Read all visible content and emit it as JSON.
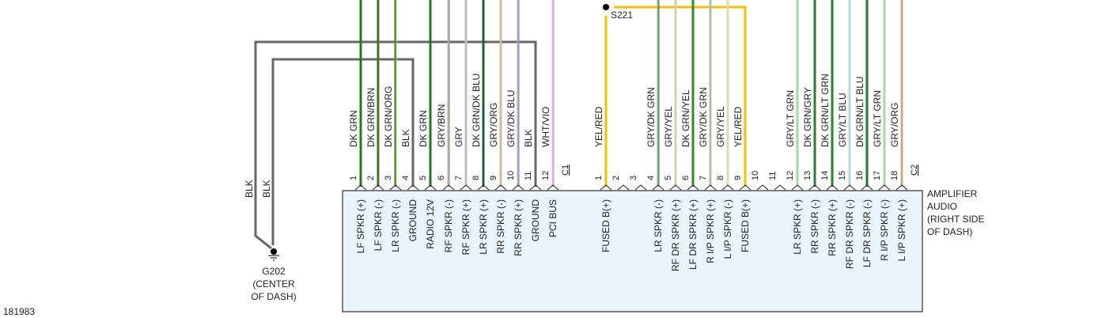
{
  "diagram_id": "181983",
  "colors": {
    "module_fill": "#e9f4fc",
    "module_border": "#555555",
    "ground_wire": "#666666",
    "splice_wire": "#f2c200"
  },
  "module": {
    "name_lines": [
      "AMPLIFIER",
      "AUDIO",
      "(RIGHT SIDE",
      "OF DASH)"
    ]
  },
  "ground": {
    "id": "G202",
    "location_lines": [
      "(CENTER",
      "OF DASH)"
    ],
    "wires": [
      {
        "color_label": "BLK",
        "from_connector": "C1",
        "from_pin": 11
      },
      {
        "color_label": "BLK",
        "from_connector": "C1",
        "from_pin": 4
      }
    ]
  },
  "splice": {
    "id": "S221",
    "pins": [
      {
        "connector": "C2",
        "pin": 1
      },
      {
        "connector": "C2",
        "pin": 9
      }
    ]
  },
  "connectors": [
    {
      "id": "C1",
      "pins": [
        {
          "pin": "1",
          "wire": "DK GRN",
          "function": "LF SPKR (+)",
          "color": "#1f7a1f",
          "stripe": "#1f7a1f"
        },
        {
          "pin": "2",
          "wire": "DK GRN/BRN",
          "function": "LF SPKR (-)",
          "color": "#1f7a1f",
          "stripe": "#8a6a3a"
        },
        {
          "pin": "3",
          "wire": "DK GRN/ORG",
          "function": "LR SPKR (-)",
          "color": "#2f8a2f",
          "stripe": "#d9b96a"
        },
        {
          "pin": "4",
          "wire": "BLK",
          "function": "GROUND",
          "color": "#666666",
          "stripe": "#666666"
        },
        {
          "pin": "5",
          "wire": "DK GRN",
          "function": "RADIO 12V",
          "color": "#1f7a1f",
          "stripe": "#1f7a1f"
        },
        {
          "pin": "6",
          "wire": "GRY/BRN",
          "function": "RF SPKR (-)",
          "color": "#b8b0a0",
          "stripe": "#9a8a70"
        },
        {
          "pin": "7",
          "wire": "GRY",
          "function": "RF SPKR (+)",
          "color": "#bdbdbd",
          "stripe": "#bdbdbd"
        },
        {
          "pin": "8",
          "wire": "DK GRN/DK BLU",
          "function": "LR SPKR (+)",
          "color": "#1f5f3a",
          "stripe": "#1f5f3a"
        },
        {
          "pin": "9",
          "wire": "GRY/ORG",
          "function": "RR SPKR (-)",
          "color": "#d4b89a",
          "stripe": "#d4b89a"
        },
        {
          "pin": "10",
          "wire": "GRY/DK BLU",
          "function": "RR SPKR (+)",
          "color": "#a8b0c8",
          "stripe": "#7f8aa8"
        },
        {
          "pin": "11",
          "wire": "BLK",
          "function": "GROUND",
          "color": "#666666",
          "stripe": "#666666"
        },
        {
          "pin": "12",
          "wire": "WHT/VIO",
          "function": "PCI BUS",
          "color": "#e6b0e6",
          "stripe": "#d89ad8"
        }
      ]
    },
    {
      "id": "C2",
      "pins": [
        {
          "pin": "1",
          "wire": "YEL/RED",
          "function": "FUSED B(+)",
          "color": "#f2c94c",
          "stripe": "#e0a020"
        },
        {
          "pin": "2",
          "wire": "",
          "function": "",
          "color": "",
          "stripe": ""
        },
        {
          "pin": "3",
          "wire": "",
          "function": "",
          "color": "",
          "stripe": ""
        },
        {
          "pin": "4",
          "wire": "GRY/DK GRN",
          "function": "LR SPKR (-)",
          "color": "#8fb08f",
          "stripe": "#4a7a4a"
        },
        {
          "pin": "5",
          "wire": "GRY/YEL",
          "function": "RF DR SPKR (+)",
          "color": "#cfd0b0",
          "stripe": "#cfd0b0"
        },
        {
          "pin": "6",
          "wire": "DK GRN/YEL",
          "function": "LF DR SPKR (+)",
          "color": "#2f8a2f",
          "stripe": "#2f8a2f"
        },
        {
          "pin": "7",
          "wire": "GRY/DK GRN",
          "function": "R I/P SPKR (+)",
          "color": "#a8c0a8",
          "stripe": "#a8c0a8"
        },
        {
          "pin": "8",
          "wire": "GRY/YEL",
          "function": "L I/P SPKR (-)",
          "color": "#d8dcb8",
          "stripe": "#d8dcb8"
        },
        {
          "pin": "9",
          "wire": "YEL/RED",
          "function": "FUSED B(+)",
          "color": "#f2c94c",
          "stripe": "#e0a020"
        },
        {
          "pin": "10",
          "wire": "",
          "function": "",
          "color": "",
          "stripe": ""
        },
        {
          "pin": "11",
          "wire": "",
          "function": "",
          "color": "",
          "stripe": ""
        },
        {
          "pin": "12",
          "wire": "GRY/LT GRN",
          "function": "LR SPKR (+)",
          "color": "#a8d8a8",
          "stripe": "#a8d8a8"
        },
        {
          "pin": "13",
          "wire": "DK GRN/GRY",
          "function": "RR SPKR (-)",
          "color": "#2f7a3a",
          "stripe": "#2f7a3a"
        },
        {
          "pin": "14",
          "wire": "DK GRN/LT GRN",
          "function": "RR SPKR (+)",
          "color": "#1f8a2f",
          "stripe": "#1f8a2f"
        },
        {
          "pin": "15",
          "wire": "GRY/LT BLU",
          "function": "RF DR SPKR (-)",
          "color": "#b0d8e0",
          "stripe": "#b0d8e0"
        },
        {
          "pin": "16",
          "wire": "DK GRN/LT BLU",
          "function": "LF DR SPKR (-)",
          "color": "#1f7a3a",
          "stripe": "#1f7a3a"
        },
        {
          "pin": "17",
          "wire": "GRY/LT GRN",
          "function": "R I/P SPKR (-)",
          "color": "#a8d8a8",
          "stripe": "#a8d8a8"
        },
        {
          "pin": "18",
          "wire": "GRY/ORG",
          "function": "L I/P SPKR (+)",
          "color": "#c8a888",
          "stripe": "#c8a888"
        }
      ]
    }
  ]
}
